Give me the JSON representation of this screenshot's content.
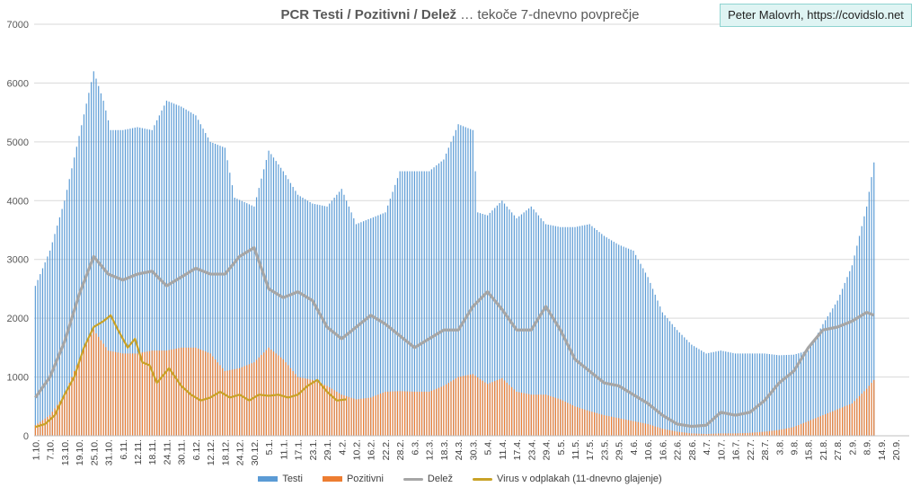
{
  "header": {
    "title_bold": "PCR Testi / Pozitivni / Delež",
    "title_rest": " … tekoče 7-dnevno povprečje",
    "attribution": "Peter Malovrh, https://covidslo.net"
  },
  "chart_data": {
    "type": "bar",
    "title": "PCR Testi / Pozitivni / Delež … tekoče 7-dnevno povprečje",
    "ylim": [
      0,
      7000
    ],
    "yticks": [
      0,
      1000,
      2000,
      3000,
      4000,
      5000,
      6000,
      7000
    ],
    "grid": "horizontal",
    "legend_position": "bottom",
    "x_tick_labels": [
      "1.10.",
      "7.10.",
      "13.10.",
      "19.10.",
      "25.10.",
      "31.10.",
      "6.11.",
      "12.11.",
      "18.11.",
      "24.11.",
      "30.11.",
      "6.12.",
      "12.12.",
      "18.12.",
      "24.12.",
      "30.12.",
      "5.1.",
      "11.1.",
      "17.1.",
      "23.1.",
      "29.1.",
      "4.2.",
      "10.2.",
      "16.2.",
      "22.2.",
      "28.2.",
      "6.3.",
      "12.3.",
      "18.3.",
      "24.3.",
      "30.3.",
      "5.4.",
      "11.4.",
      "17.4.",
      "23.4.",
      "29.4.",
      "5.5.",
      "11.5.",
      "17.5.",
      "23.5.",
      "29.5.",
      "4.6.",
      "10.6.",
      "16.6.",
      "22.6.",
      "28.6.",
      "4.7.",
      "10.7.",
      "16.7.",
      "22.7.",
      "28.7.",
      "3.8.",
      "9.8.",
      "15.8.",
      "21.8.",
      "27.8.",
      "2.9.",
      "8.9.",
      "14.9.",
      "20.9."
    ],
    "tick_day_interval": 6,
    "total_days": 360,
    "series": [
      {
        "name": "Testi",
        "kind": "bar",
        "color": "#5b9bd5",
        "day_range": [
          0,
          345
        ],
        "knots": [
          [
            0,
            2550
          ],
          [
            6,
            3150
          ],
          [
            12,
            4000
          ],
          [
            18,
            5100
          ],
          [
            24,
            6200
          ],
          [
            28,
            5700
          ],
          [
            31,
            5200
          ],
          [
            36,
            5200
          ],
          [
            42,
            5250
          ],
          [
            48,
            5200
          ],
          [
            54,
            5700
          ],
          [
            60,
            5600
          ],
          [
            66,
            5450
          ],
          [
            72,
            5000
          ],
          [
            78,
            4900
          ],
          [
            82,
            4050
          ],
          [
            90,
            3900
          ],
          [
            96,
            4850
          ],
          [
            102,
            4500
          ],
          [
            108,
            4100
          ],
          [
            114,
            3950
          ],
          [
            120,
            3900
          ],
          [
            126,
            4200
          ],
          [
            132,
            3600
          ],
          [
            138,
            3700
          ],
          [
            144,
            3800
          ],
          [
            150,
            4500
          ],
          [
            156,
            4500
          ],
          [
            162,
            4500
          ],
          [
            168,
            4700
          ],
          [
            174,
            5300
          ],
          [
            180,
            5200
          ],
          [
            182,
            3800
          ],
          [
            186,
            3750
          ],
          [
            192,
            4000
          ],
          [
            198,
            3700
          ],
          [
            204,
            3900
          ],
          [
            210,
            3600
          ],
          [
            216,
            3550
          ],
          [
            222,
            3550
          ],
          [
            228,
            3600
          ],
          [
            234,
            3400
          ],
          [
            240,
            3250
          ],
          [
            246,
            3150
          ],
          [
            252,
            2700
          ],
          [
            258,
            2100
          ],
          [
            264,
            1800
          ],
          [
            270,
            1550
          ],
          [
            276,
            1400
          ],
          [
            282,
            1450
          ],
          [
            288,
            1400
          ],
          [
            294,
            1400
          ],
          [
            300,
            1400
          ],
          [
            306,
            1370
          ],
          [
            312,
            1380
          ],
          [
            318,
            1450
          ],
          [
            324,
            1900
          ],
          [
            330,
            2300
          ],
          [
            336,
            2900
          ],
          [
            342,
            3900
          ],
          [
            345,
            4650
          ]
        ]
      },
      {
        "name": "Pozitivni",
        "kind": "bar",
        "color": "#ed7d31",
        "day_range": [
          0,
          345
        ],
        "knots": [
          [
            0,
            180
          ],
          [
            6,
            350
          ],
          [
            12,
            700
          ],
          [
            18,
            1300
          ],
          [
            24,
            1800
          ],
          [
            30,
            1450
          ],
          [
            36,
            1400
          ],
          [
            42,
            1400
          ],
          [
            48,
            1450
          ],
          [
            54,
            1450
          ],
          [
            60,
            1500
          ],
          [
            66,
            1500
          ],
          [
            72,
            1400
          ],
          [
            78,
            1100
          ],
          [
            84,
            1150
          ],
          [
            90,
            1250
          ],
          [
            96,
            1500
          ],
          [
            102,
            1300
          ],
          [
            108,
            1000
          ],
          [
            114,
            950
          ],
          [
            120,
            850
          ],
          [
            126,
            700
          ],
          [
            132,
            620
          ],
          [
            138,
            650
          ],
          [
            144,
            750
          ],
          [
            150,
            760
          ],
          [
            156,
            750
          ],
          [
            162,
            750
          ],
          [
            168,
            850
          ],
          [
            174,
            1000
          ],
          [
            180,
            1050
          ],
          [
            186,
            880
          ],
          [
            192,
            980
          ],
          [
            198,
            750
          ],
          [
            204,
            700
          ],
          [
            210,
            700
          ],
          [
            216,
            620
          ],
          [
            222,
            500
          ],
          [
            228,
            420
          ],
          [
            234,
            350
          ],
          [
            240,
            300
          ],
          [
            246,
            250
          ],
          [
            252,
            200
          ],
          [
            258,
            120
          ],
          [
            264,
            70
          ],
          [
            270,
            40
          ],
          [
            276,
            30
          ],
          [
            282,
            40
          ],
          [
            288,
            40
          ],
          [
            294,
            50
          ],
          [
            300,
            70
          ],
          [
            306,
            100
          ],
          [
            312,
            150
          ],
          [
            318,
            250
          ],
          [
            324,
            350
          ],
          [
            330,
            450
          ],
          [
            336,
            550
          ],
          [
            342,
            800
          ],
          [
            345,
            950
          ]
        ]
      },
      {
        "name": "Delež",
        "kind": "line",
        "color": "#a6a6a6",
        "day_range": [
          0,
          345
        ],
        "knots": [
          [
            0,
            650
          ],
          [
            6,
            1000
          ],
          [
            12,
            1600
          ],
          [
            18,
            2400
          ],
          [
            24,
            3050
          ],
          [
            30,
            2750
          ],
          [
            36,
            2650
          ],
          [
            42,
            2750
          ],
          [
            48,
            2800
          ],
          [
            54,
            2550
          ],
          [
            60,
            2700
          ],
          [
            66,
            2850
          ],
          [
            72,
            2750
          ],
          [
            78,
            2750
          ],
          [
            84,
            3050
          ],
          [
            90,
            3200
          ],
          [
            96,
            2500
          ],
          [
            102,
            2350
          ],
          [
            108,
            2450
          ],
          [
            114,
            2300
          ],
          [
            120,
            1850
          ],
          [
            126,
            1650
          ],
          [
            132,
            1850
          ],
          [
            138,
            2050
          ],
          [
            144,
            1900
          ],
          [
            150,
            1700
          ],
          [
            156,
            1500
          ],
          [
            162,
            1650
          ],
          [
            168,
            1800
          ],
          [
            174,
            1800
          ],
          [
            180,
            2200
          ],
          [
            186,
            2450
          ],
          [
            192,
            2150
          ],
          [
            198,
            1800
          ],
          [
            204,
            1800
          ],
          [
            210,
            2200
          ],
          [
            216,
            1800
          ],
          [
            222,
            1300
          ],
          [
            228,
            1100
          ],
          [
            234,
            900
          ],
          [
            240,
            850
          ],
          [
            246,
            700
          ],
          [
            252,
            550
          ],
          [
            258,
            350
          ],
          [
            264,
            200
          ],
          [
            270,
            160
          ],
          [
            276,
            180
          ],
          [
            282,
            400
          ],
          [
            288,
            350
          ],
          [
            294,
            400
          ],
          [
            300,
            600
          ],
          [
            306,
            900
          ],
          [
            312,
            1100
          ],
          [
            318,
            1500
          ],
          [
            324,
            1800
          ],
          [
            330,
            1850
          ],
          [
            336,
            1950
          ],
          [
            342,
            2100
          ],
          [
            345,
            2050
          ]
        ]
      },
      {
        "name": "Virus v odplakah (11-dnevno glajenje)",
        "kind": "line",
        "color": "#c9a227",
        "day_range": [
          0,
          128
        ],
        "knots": [
          [
            0,
            150
          ],
          [
            4,
            200
          ],
          [
            8,
            350
          ],
          [
            12,
            700
          ],
          [
            16,
            1000
          ],
          [
            20,
            1500
          ],
          [
            24,
            1850
          ],
          [
            28,
            1950
          ],
          [
            31,
            2050
          ],
          [
            34,
            1800
          ],
          [
            38,
            1500
          ],
          [
            41,
            1650
          ],
          [
            44,
            1250
          ],
          [
            47,
            1200
          ],
          [
            50,
            900
          ],
          [
            55,
            1150
          ],
          [
            60,
            850
          ],
          [
            64,
            700
          ],
          [
            68,
            600
          ],
          [
            72,
            650
          ],
          [
            76,
            750
          ],
          [
            80,
            650
          ],
          [
            84,
            700
          ],
          [
            88,
            600
          ],
          [
            92,
            700
          ],
          [
            96,
            680
          ],
          [
            100,
            700
          ],
          [
            104,
            650
          ],
          [
            108,
            700
          ],
          [
            112,
            850
          ],
          [
            116,
            950
          ],
          [
            120,
            750
          ],
          [
            124,
            600
          ],
          [
            128,
            620
          ]
        ]
      }
    ]
  }
}
